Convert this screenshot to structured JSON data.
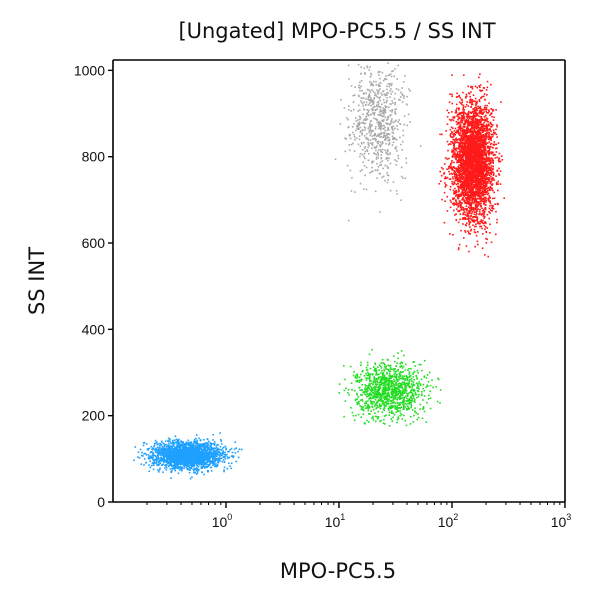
{
  "chart_data": {
    "type": "scatter",
    "title": "[Ungated] MPO-PC5.5 / SS INT",
    "xlabel": "MPO-PC5.5",
    "ylabel": "SS INT",
    "x_scale": "log",
    "xlim": [
      0.1,
      1000
    ],
    "ylim": [
      0,
      1024
    ],
    "x_ticks": [
      {
        "value": 1,
        "base": "10",
        "exp": "0"
      },
      {
        "value": 10,
        "base": "10",
        "exp": "1"
      },
      {
        "value": 100,
        "base": "10",
        "exp": "2"
      },
      {
        "value": 1000,
        "base": "10",
        "exp": "3"
      }
    ],
    "y_ticks": [
      0,
      200,
      400,
      600,
      800,
      1000
    ],
    "grid": false,
    "legend": "none",
    "populations": [
      {
        "color": "#1ea0ff",
        "x_median": 0.45,
        "y_median": 110,
        "events": 2200
      },
      {
        "color": "#22dd22",
        "x_median": 28,
        "y_median": 260,
        "events": 1100
      },
      {
        "color": "#ff1a1a",
        "x_median": 150,
        "y_median": 790,
        "events": 3600
      },
      {
        "color": "#aaaaaa",
        "x_median": 22,
        "y_median": 880,
        "events": 700
      }
    ]
  }
}
